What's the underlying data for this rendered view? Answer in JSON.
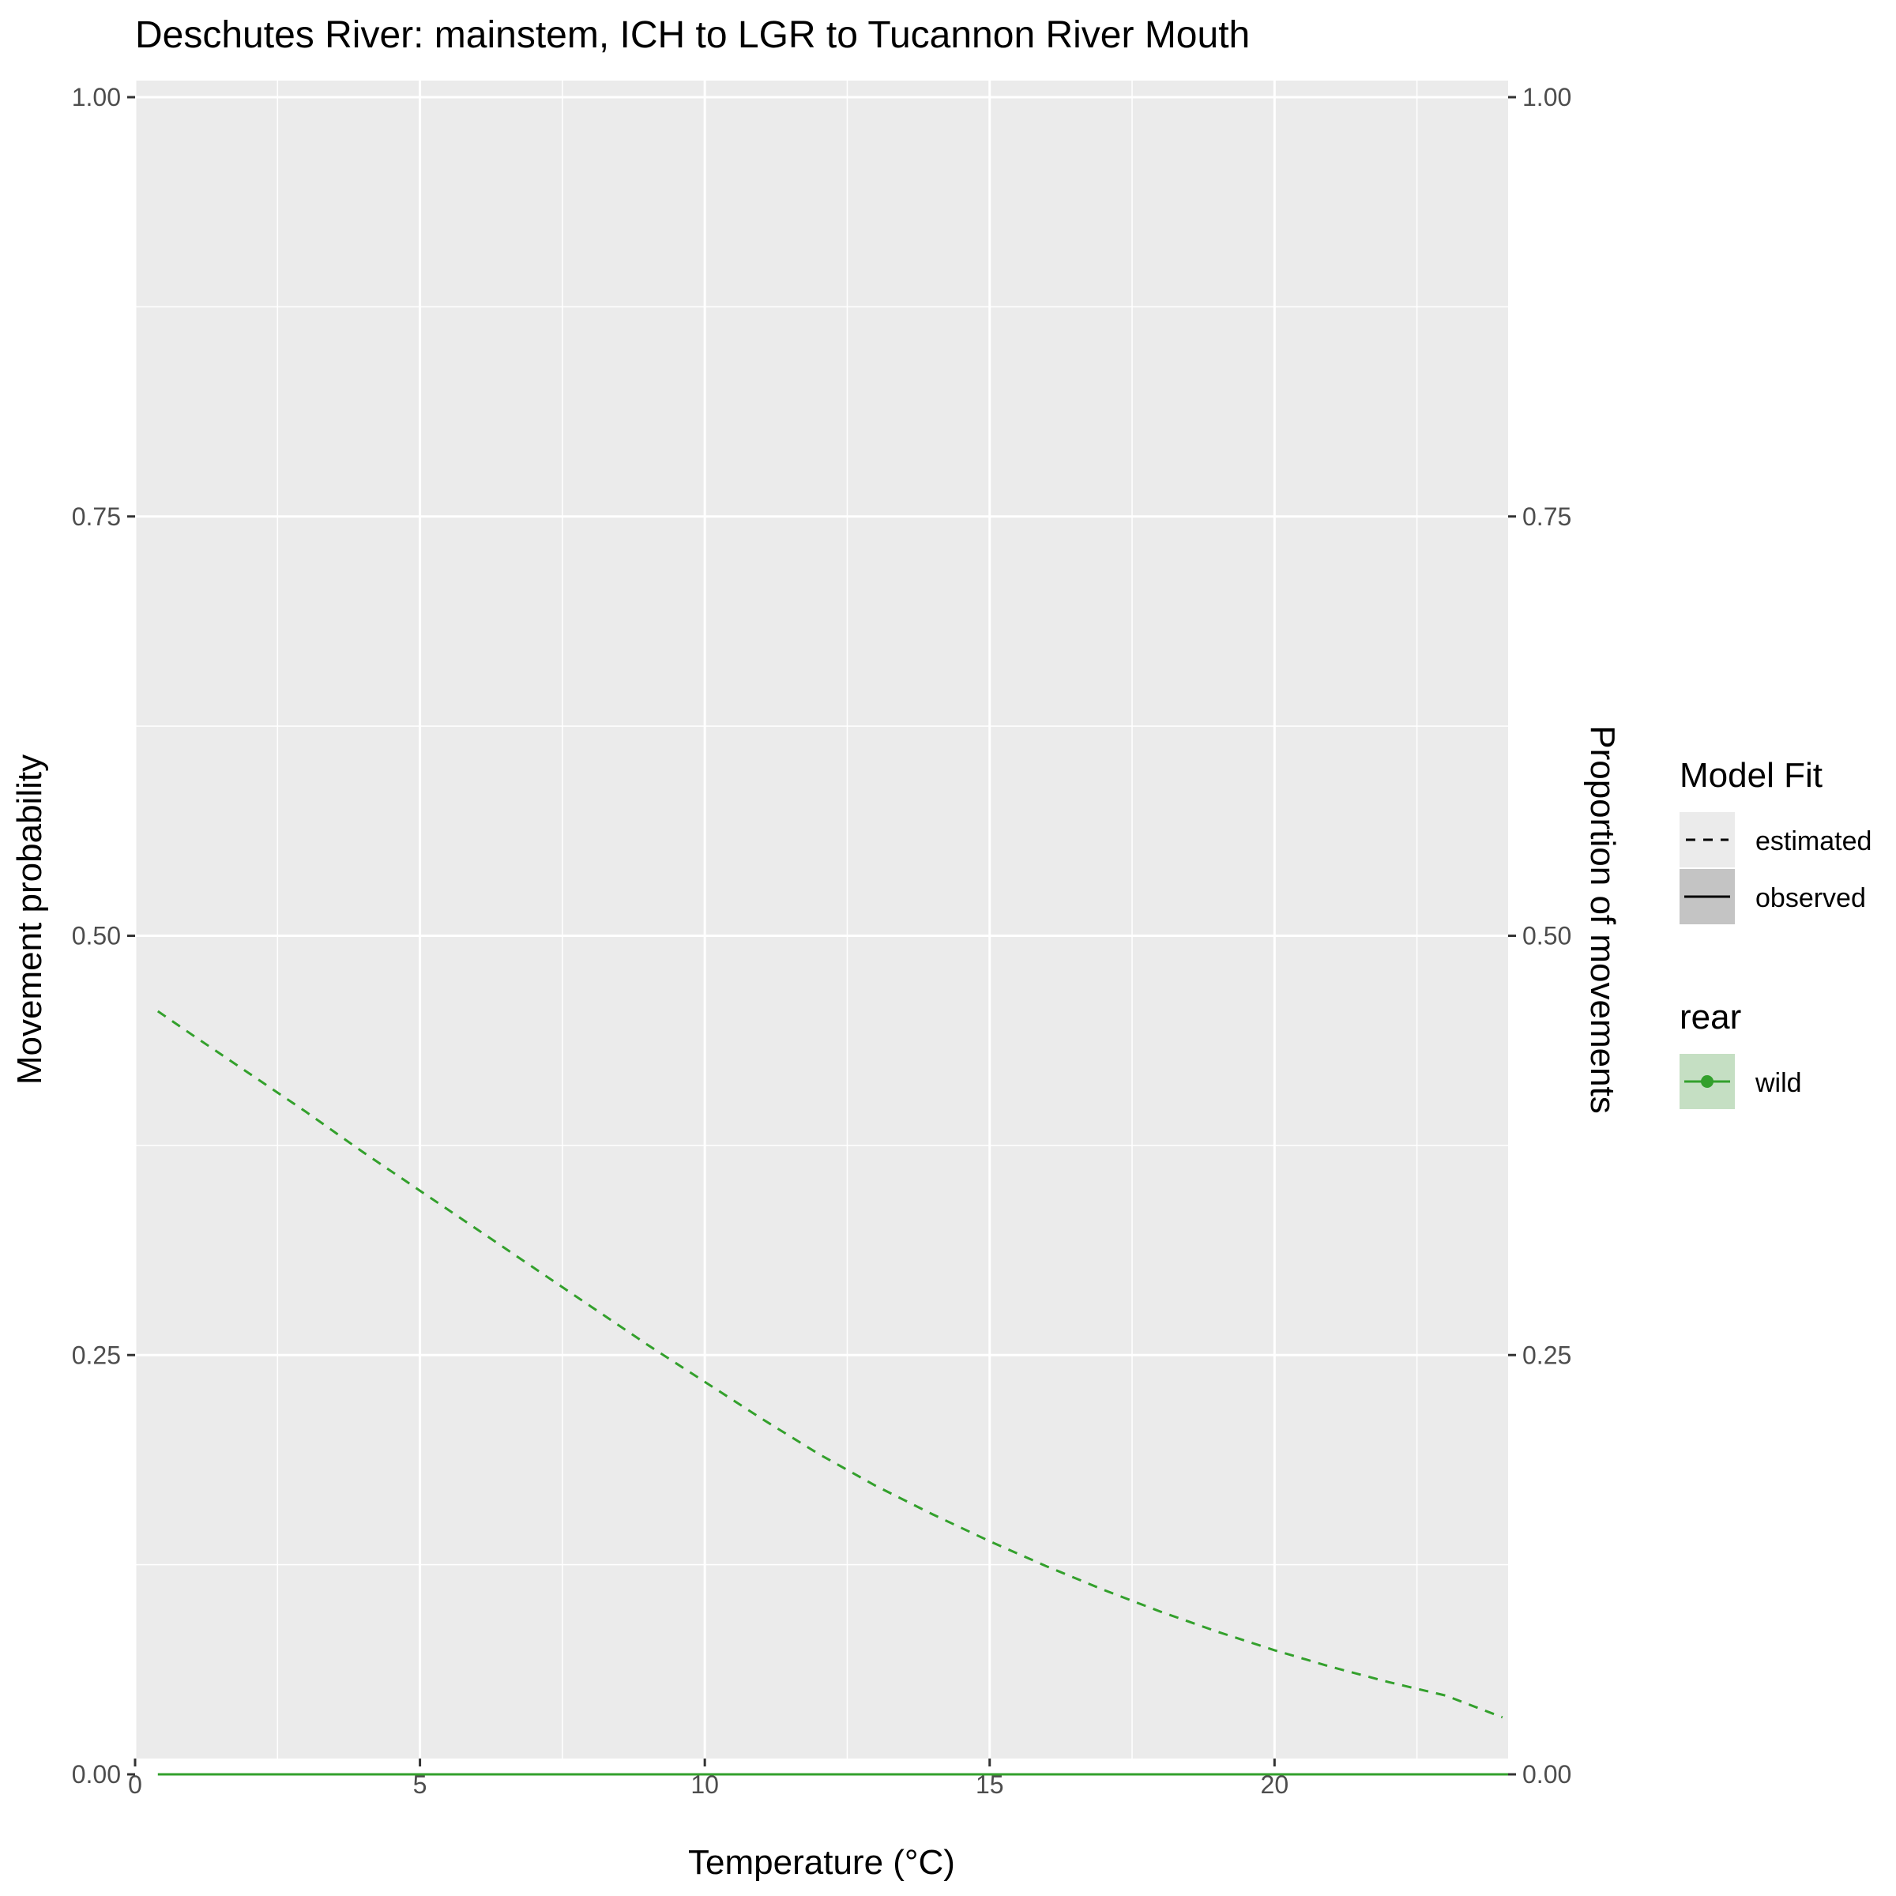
{
  "chart_data": {
    "type": "line",
    "title": "Deschutes River: mainstem, ICH to LGR to Tucannon River Mouth",
    "xlabel": "Temperature (°C)",
    "ylabel": "Movement probability",
    "ylabel_right": "Proportion of movements",
    "xlim": [
      0,
      24.1
    ],
    "ylim": [
      0,
      1
    ],
    "x_ticks": [
      0,
      5,
      10,
      15,
      20
    ],
    "x_tick_labels": [
      "0",
      "5",
      "10",
      "15",
      "20"
    ],
    "y_ticks": [
      0,
      0.25,
      0.5,
      0.75,
      1
    ],
    "y_tick_labels": [
      "0.00",
      "0.25",
      "0.50",
      "0.75",
      "1.00"
    ],
    "grid": true,
    "legend_position": "right",
    "legend": {
      "model_fit": {
        "title": "Model Fit",
        "entries": [
          {
            "label": "estimated",
            "linetype": "dashed"
          },
          {
            "label": "observed",
            "linetype": "solid"
          }
        ]
      },
      "rear": {
        "title": "rear",
        "entries": [
          {
            "label": "wild",
            "color": "#33a02c"
          }
        ]
      }
    },
    "colors": {
      "wild": "#33a02c",
      "wild_fill": "#c5dfc3",
      "panel_background": "#ebebeb",
      "grid": "#ffffff"
    },
    "series": [
      {
        "name": "estimated",
        "rear": "wild",
        "linetype": "dashed",
        "x": [
          0.4,
          1,
          2,
          3,
          4,
          5,
          6,
          7,
          8,
          9,
          10,
          11,
          12,
          13,
          14,
          15,
          16,
          17,
          18,
          19,
          20,
          21,
          22,
          23,
          24
        ],
        "y": [
          0.455,
          0.441,
          0.418,
          0.395,
          0.371,
          0.348,
          0.325,
          0.302,
          0.279,
          0.256,
          0.234,
          0.212,
          0.191,
          0.172,
          0.155,
          0.139,
          0.124,
          0.11,
          0.097,
          0.085,
          0.074,
          0.064,
          0.055,
          0.047,
          0.034
        ]
      },
      {
        "name": "observed",
        "rear": "wild",
        "linetype": "solid",
        "x": [
          0.4,
          24.1
        ],
        "y": [
          0,
          0
        ]
      }
    ]
  }
}
